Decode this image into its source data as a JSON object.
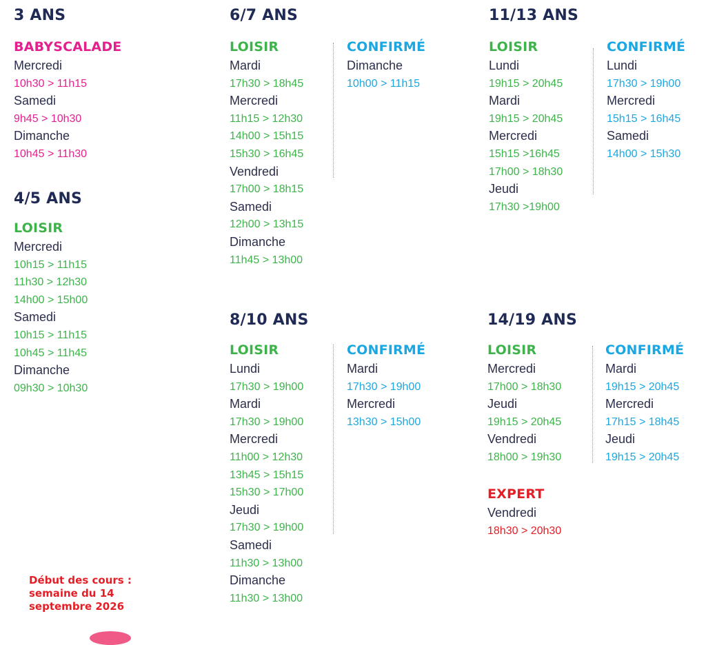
{
  "blocks": [
    {
      "age": "3 ANS",
      "groups": [
        {
          "category": "BABYSCALADE",
          "color": "pink",
          "items": [
            {
              "t": "day",
              "v": "Mercredi"
            },
            {
              "t": "time",
              "v": "10h30 > 11h15"
            },
            {
              "t": "day",
              "v": "Samedi"
            },
            {
              "t": "time",
              "v": "9h45 > 10h30"
            },
            {
              "t": "day",
              "v": "Dimanche"
            },
            {
              "t": "time",
              "v": "10h45 > 11h30"
            }
          ]
        }
      ]
    },
    {
      "age": "4/5 ANS",
      "groups": [
        {
          "category": "LOISIR",
          "color": "green",
          "items": [
            {
              "t": "day",
              "v": "Mercredi"
            },
            {
              "t": "time",
              "v": "10h15 > 11h15"
            },
            {
              "t": "time",
              "v": "11h30 > 12h30"
            },
            {
              "t": "time",
              "v": "14h00 > 15h00"
            },
            {
              "t": "day",
              "v": "Samedi"
            },
            {
              "t": "time",
              "v": "10h15 > 11h15"
            },
            {
              "t": "time",
              "v": "10h45 > 11h45"
            },
            {
              "t": "day",
              "v": "Dimanche"
            },
            {
              "t": "time",
              "v": "09h30 > 10h30"
            }
          ]
        }
      ]
    },
    {
      "age": "6/7 ANS",
      "groups": [
        {
          "category": "LOISIR",
          "color": "green",
          "items": [
            {
              "t": "day",
              "v": "Mardi"
            },
            {
              "t": "time",
              "v": "17h30 > 18h45"
            },
            {
              "t": "day",
              "v": "Mercredi"
            },
            {
              "t": "time",
              "v": "11h15 > 12h30"
            },
            {
              "t": "time",
              "v": "14h00 > 15h15"
            },
            {
              "t": "time",
              "v": "15h30 > 16h45"
            },
            {
              "t": "day",
              "v": "Vendredi"
            },
            {
              "t": "time",
              "v": "17h00 > 18h15"
            },
            {
              "t": "day",
              "v": "Samedi"
            },
            {
              "t": "time",
              "v": "12h00 > 13h15"
            },
            {
              "t": "day",
              "v": "Dimanche"
            },
            {
              "t": "time",
              "v": "11h45 > 13h00"
            }
          ]
        },
        {
          "category": "CONFIRMÉ",
          "color": "blue",
          "items": [
            {
              "t": "day",
              "v": "Dimanche"
            },
            {
              "t": "time",
              "v": "10h00 > 11h15"
            }
          ]
        }
      ]
    },
    {
      "age": "8/10 ANS",
      "groups": [
        {
          "category": "LOISIR",
          "color": "green",
          "items": [
            {
              "t": "day",
              "v": "Lundi"
            },
            {
              "t": "time",
              "v": "17h30 > 19h00"
            },
            {
              "t": "day",
              "v": "Mardi"
            },
            {
              "t": "time",
              "v": "17h30 > 19h00"
            },
            {
              "t": "day",
              "v": "Mercredi"
            },
            {
              "t": "time",
              "v": "11h00 > 12h30"
            },
            {
              "t": "time",
              "v": "13h45 > 15h15"
            },
            {
              "t": "time",
              "v": "15h30 > 17h00"
            },
            {
              "t": "day",
              "v": "Jeudi"
            },
            {
              "t": "time",
              "v": "17h30 > 19h00"
            },
            {
              "t": "day",
              "v": "Samedi"
            },
            {
              "t": "time",
              "v": "11h30 > 13h00"
            },
            {
              "t": "day",
              "v": "Dimanche"
            },
            {
              "t": "time",
              "v": "11h30 > 13h00"
            }
          ]
        },
        {
          "category": "CONFIRMÉ",
          "color": "blue",
          "items": [
            {
              "t": "day",
              "v": "Mardi"
            },
            {
              "t": "time",
              "v": "17h30 > 19h00"
            },
            {
              "t": "day",
              "v": "Mercredi"
            },
            {
              "t": "time",
              "v": "13h30 > 15h00"
            }
          ]
        }
      ]
    },
    {
      "age": "11/13 ANS",
      "groups": [
        {
          "category": "LOISIR",
          "color": "green",
          "items": [
            {
              "t": "day",
              "v": "Lundi"
            },
            {
              "t": "time",
              "v": "19h15 > 20h45"
            },
            {
              "t": "day",
              "v": "Mardi"
            },
            {
              "t": "time",
              "v": "19h15 > 20h45"
            },
            {
              "t": "day",
              "v": "Mercredi"
            },
            {
              "t": "time",
              "v": "15h15 >16h45"
            },
            {
              "t": "time",
              "v": "17h00 > 18h30"
            },
            {
              "t": "day",
              "v": "Jeudi"
            },
            {
              "t": "time",
              "v": "17h30 >19h00"
            }
          ]
        },
        {
          "category": "CONFIRMÉ",
          "color": "blue",
          "items": [
            {
              "t": "day",
              "v": "Lundi"
            },
            {
              "t": "time",
              "v": "17h30 > 19h00"
            },
            {
              "t": "day",
              "v": "Mercredi"
            },
            {
              "t": "time",
              "v": "15h15 > 16h45"
            },
            {
              "t": "day",
              "v": "Samedi"
            },
            {
              "t": "time",
              "v": "14h00 > 15h30"
            }
          ]
        }
      ]
    },
    {
      "age": "14/19 ANS",
      "groups": [
        {
          "category": "LOISIR",
          "color": "green",
          "items": [
            {
              "t": "day",
              "v": "Mercredi"
            },
            {
              "t": "time",
              "v": "17h00 > 18h30"
            },
            {
              "t": "day",
              "v": "Jeudi"
            },
            {
              "t": "time",
              "v": "19h15 > 20h45"
            },
            {
              "t": "day",
              "v": "Vendredi"
            },
            {
              "t": "time",
              "v": "18h00 > 19h30"
            }
          ]
        },
        {
          "category": "CONFIRMÉ",
          "color": "blue",
          "items": [
            {
              "t": "day",
              "v": "Mardi"
            },
            {
              "t": "time",
              "v": "19h15 > 20h45"
            },
            {
              "t": "day",
              "v": "Mercredi"
            },
            {
              "t": "time",
              "v": "17h15 > 18h45"
            },
            {
              "t": "day",
              "v": "Jeudi"
            },
            {
              "t": "time",
              "v": "19h15 > 20h45"
            }
          ]
        },
        {
          "category": "EXPERT",
          "color": "red",
          "items": [
            {
              "t": "day",
              "v": "Vendredi"
            },
            {
              "t": "time",
              "v": "18h30 > 20h30"
            }
          ]
        }
      ]
    }
  ],
  "notice": "Début des cours :\nsemaine du 14\nseptembre 2026",
  "colors": {
    "heading": "#1f2a55",
    "day_text": "#2b2f4b",
    "pink": "#e4208f",
    "green": "#3db34a",
    "blue": "#1ba7e1",
    "red": "#e41e26"
  }
}
